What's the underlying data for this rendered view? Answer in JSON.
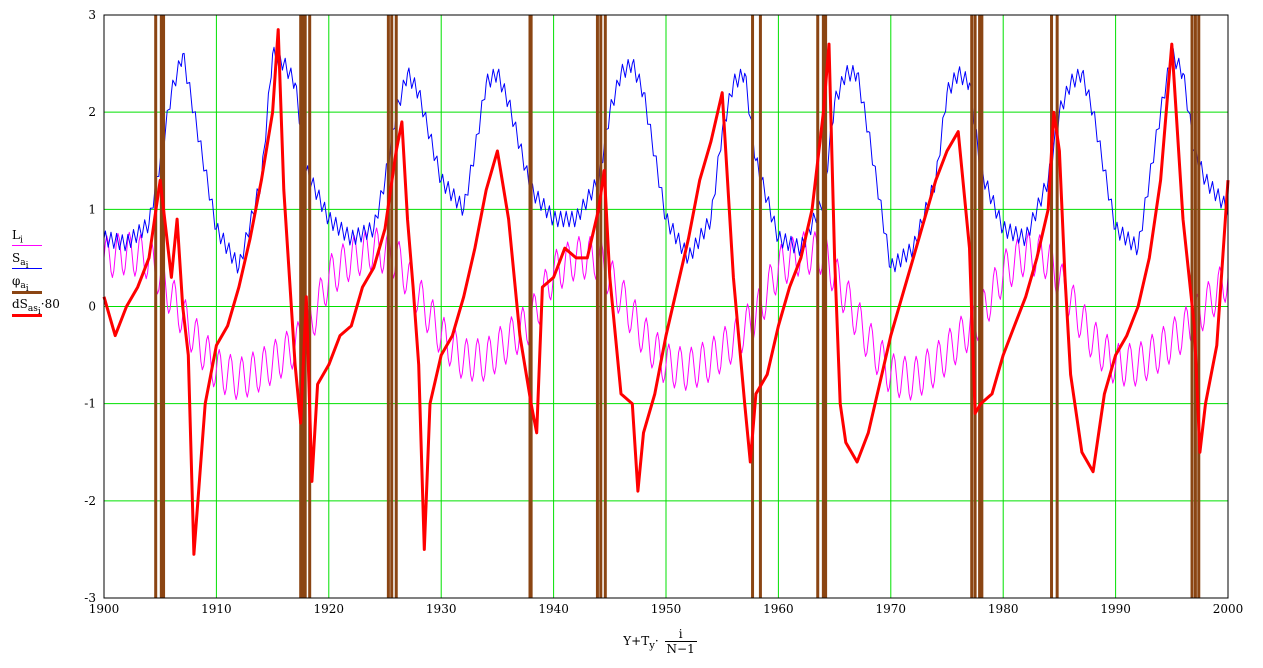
{
  "chart_data": {
    "type": "line",
    "xlabel": {
      "base": "Y+T",
      "sub": "y",
      "dot": "·",
      "numerator": "i",
      "denominator": "N−1"
    },
    "xlim": [
      1900,
      2000
    ],
    "ylim": [
      -3,
      3
    ],
    "grid": true,
    "grid_color": "#00e000",
    "x_ticks": [
      "1900",
      "1910",
      "1920",
      "1930",
      "1940",
      "1950",
      "1960",
      "1970",
      "1980",
      "1990",
      "2000"
    ],
    "y_ticks": [
      "-3",
      "-2",
      "-1",
      "0",
      "1",
      "2",
      "3"
    ],
    "legend_position": "left",
    "series": [
      {
        "name": "L",
        "sub": "i",
        "color": "#ff00ff",
        "width": 1,
        "note": "oscillating band roughly between -1 and 0.8",
        "x": [
          1900,
          1902,
          1904,
          1906,
          1908,
          1910,
          1912,
          1914,
          1916,
          1918,
          1920,
          1922,
          1924,
          1926,
          1928,
          1930,
          1932,
          1934,
          1936,
          1938,
          1940,
          1942,
          1944,
          1946,
          1948,
          1950,
          1952,
          1954,
          1956,
          1958,
          1960,
          1962,
          1964,
          1966,
          1968,
          1970,
          1972,
          1974,
          1976,
          1978,
          1980,
          1982,
          1984,
          1986,
          1988,
          1990,
          1992,
          1994,
          1996,
          1998,
          2000
        ],
        "y": [
          0.5,
          0.55,
          0.5,
          0.1,
          -0.3,
          -0.65,
          -0.75,
          -0.65,
          -0.5,
          -0.3,
          0.3,
          0.5,
          0.6,
          0.5,
          0.1,
          -0.3,
          -0.55,
          -0.55,
          -0.35,
          -0.15,
          0.35,
          0.5,
          0.5,
          0.1,
          -0.3,
          -0.6,
          -0.65,
          -0.55,
          -0.35,
          -0.1,
          0.4,
          0.55,
          0.55,
          0.1,
          -0.35,
          -0.7,
          -0.75,
          -0.6,
          -0.35,
          -0.1,
          0.35,
          0.55,
          0.5,
          0.05,
          -0.35,
          -0.6,
          -0.6,
          -0.45,
          -0.25,
          0.0,
          0.3
        ]
      },
      {
        "name": "S",
        "sub": "a",
        "subsub": "i",
        "color": "#0000ff",
        "width": 1,
        "x": [
          1900,
          1902,
          1904,
          1905,
          1906,
          1907,
          1908,
          1910,
          1912,
          1914,
          1915,
          1916,
          1917,
          1918,
          1920,
          1922,
          1924,
          1925,
          1926,
          1927,
          1928,
          1930,
          1932,
          1933,
          1934,
          1935,
          1936,
          1938,
          1940,
          1942,
          1944,
          1945,
          1946,
          1947,
          1948,
          1950,
          1952,
          1954,
          1955,
          1956,
          1957,
          1958,
          1960,
          1962,
          1964,
          1965,
          1966,
          1967,
          1968,
          1970,
          1972,
          1974,
          1975,
          1976,
          1977,
          1978,
          1980,
          1982,
          1984,
          1985,
          1986,
          1987,
          1988,
          1990,
          1992,
          1994,
          1995,
          1996,
          1997,
          1998,
          2000
        ],
        "y": [
          0.7,
          0.65,
          0.85,
          1.5,
          2.2,
          2.6,
          2.0,
          0.8,
          0.4,
          1.3,
          2.6,
          2.5,
          2.3,
          1.4,
          0.9,
          0.7,
          0.8,
          1.3,
          2.0,
          2.4,
          2.2,
          1.3,
          1.0,
          1.6,
          2.3,
          2.4,
          2.1,
          1.2,
          0.9,
          0.9,
          1.3,
          2.0,
          2.4,
          2.5,
          2.2,
          0.9,
          0.5,
          0.9,
          1.8,
          2.3,
          2.4,
          1.5,
          0.7,
          0.6,
          1.1,
          2.1,
          2.4,
          2.4,
          1.8,
          0.4,
          0.6,
          1.3,
          2.2,
          2.4,
          2.3,
          1.4,
          0.8,
          0.7,
          1.3,
          2.0,
          2.3,
          2.4,
          2.0,
          0.8,
          0.6,
          2.0,
          2.6,
          2.4,
          1.6,
          1.3,
          1.0
        ]
      },
      {
        "name": "φ",
        "sub": "a",
        "subsub": "i",
        "color": "#8b4513",
        "width": 3,
        "note": "vertical bars spanning full y-range",
        "x": [
          1904.6,
          1905.1,
          1905.3,
          1917.5,
          1917.7,
          1917.9,
          1918.3,
          1925.3,
          1925.6,
          1926.0,
          1937.9,
          1938.0,
          1943.9,
          1944.2,
          1944.6,
          1957.7,
          1958.4,
          1963.5,
          1964.0,
          1964.2,
          1977.2,
          1977.5,
          1977.9,
          1978.1,
          1984.3,
          1984.8,
          1996.8,
          1997.1,
          1997.4
        ]
      },
      {
        "name": "dS",
        "sub": "as",
        "subsub": "i",
        "suffix": "·80",
        "color": "#ff0000",
        "width": 3,
        "x": [
          1900,
          1901,
          1902,
          1903,
          1904,
          1905,
          1906,
          1906.5,
          1907,
          1907.5,
          1908,
          1909,
          1910,
          1911,
          1912,
          1913,
          1914,
          1915,
          1915.5,
          1916,
          1917,
          1917.5,
          1918,
          1918.5,
          1919,
          1920,
          1921,
          1922,
          1923,
          1924,
          1925,
          1926,
          1926.5,
          1927,
          1927.5,
          1928,
          1928.5,
          1929,
          1930,
          1931,
          1932,
          1933,
          1934,
          1935,
          1936,
          1937,
          1938,
          1938.5,
          1939,
          1940,
          1941,
          1942,
          1943,
          1944,
          1944.5,
          1945,
          1946,
          1947,
          1947.5,
          1948,
          1949,
          1950,
          1951,
          1952,
          1953,
          1954,
          1955,
          1956,
          1957,
          1957.5,
          1958,
          1959,
          1960,
          1961,
          1962,
          1963,
          1964,
          1964.5,
          1965,
          1965.5,
          1966,
          1967,
          1968,
          1969,
          1970,
          1971,
          1972,
          1973,
          1974,
          1975,
          1976,
          1977,
          1977.5,
          1978,
          1979,
          1980,
          1981,
          1982,
          1983,
          1984,
          1984.5,
          1985,
          1985.5,
          1986,
          1987,
          1988,
          1989,
          1990,
          1991,
          1992,
          1993,
          1994,
          1995,
          1996,
          1997,
          1997.5,
          1998,
          1999,
          2000
        ],
        "y": [
          0.1,
          -0.3,
          0.0,
          0.2,
          0.5,
          1.3,
          0.3,
          0.9,
          0.0,
          -0.5,
          -2.55,
          -1.0,
          -0.4,
          -0.2,
          0.2,
          0.7,
          1.3,
          2.0,
          2.85,
          1.2,
          -0.6,
          -1.2,
          0.1,
          -1.8,
          -0.8,
          -0.6,
          -0.3,
          -0.2,
          0.2,
          0.4,
          0.8,
          1.6,
          1.9,
          0.9,
          0.2,
          -0.6,
          -2.5,
          -1.0,
          -0.5,
          -0.3,
          0.1,
          0.6,
          1.2,
          1.6,
          0.9,
          -0.3,
          -1.0,
          -1.3,
          0.2,
          0.3,
          0.6,
          0.5,
          0.5,
          1.0,
          1.4,
          0.3,
          -0.9,
          -1.0,
          -1.9,
          -1.3,
          -0.9,
          -0.3,
          0.2,
          0.7,
          1.3,
          1.7,
          2.2,
          0.3,
          -1.0,
          -1.6,
          -0.9,
          -0.7,
          -0.2,
          0.2,
          0.5,
          1.0,
          2.0,
          2.7,
          0.5,
          -1.0,
          -1.4,
          -1.6,
          -1.3,
          -0.8,
          -0.3,
          0.1,
          0.5,
          0.9,
          1.3,
          1.6,
          1.8,
          0.6,
          -1.1,
          -1.0,
          -0.9,
          -0.5,
          -0.2,
          0.1,
          0.5,
          1.0,
          2.0,
          1.6,
          0.3,
          -0.7,
          -1.5,
          -1.7,
          -0.9,
          -0.5,
          -0.3,
          0.0,
          0.5,
          1.3,
          2.7,
          0.9,
          -0.2,
          -1.5,
          -1.0,
          -0.4,
          1.3
        ]
      }
    ]
  }
}
